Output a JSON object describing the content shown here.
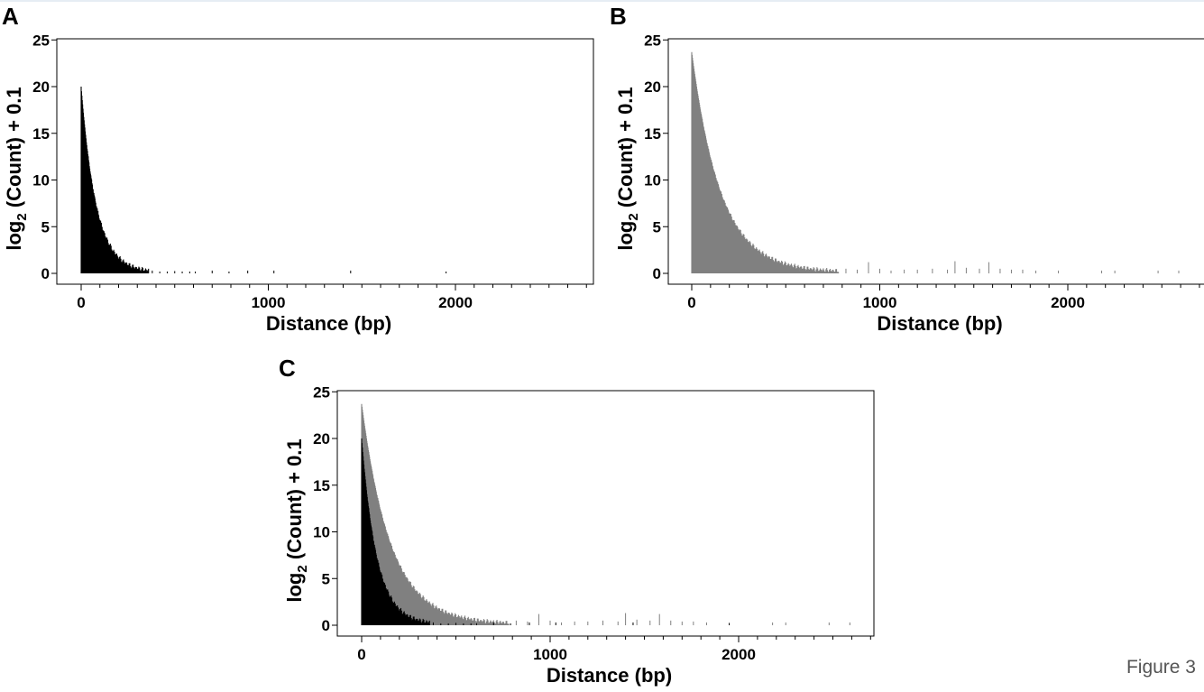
{
  "figure": {
    "caption": "Figure 3",
    "colors": {
      "A": "#000000",
      "B": "#808080",
      "axis": "#000000",
      "background": "#ffffff"
    }
  },
  "chart_data": [
    {
      "panel": "A",
      "type": "bar",
      "xlabel": "Distance (bp)",
      "ylabel_main": "log",
      "ylabel_sub": "2",
      "ylabel_tail": " (Count) + 0.1",
      "xlim": [
        0,
        2700
      ],
      "ylim": [
        0,
        25
      ],
      "xticks": [
        0,
        1000,
        2000
      ],
      "yticks": [
        0,
        5,
        10,
        15,
        20,
        25
      ],
      "grid": false,
      "series": [
        {
          "color": "#000000",
          "decay": {
            "start": 20,
            "rate": 0.0125,
            "x_end": 360
          },
          "spikes": [
            [
              380,
              0.3
            ],
            [
              420,
              0.2
            ],
            [
              460,
              0.2
            ],
            [
              500,
              0.25
            ],
            [
              540,
              0.2
            ],
            [
              580,
              0.2
            ],
            [
              610,
              0.2
            ],
            [
              700,
              0.3
            ],
            [
              790,
              0.2
            ],
            [
              890,
              0.3
            ],
            [
              1030,
              0.3
            ],
            [
              1440,
              0.3
            ],
            [
              1950,
              0.2
            ]
          ]
        }
      ]
    },
    {
      "panel": "B",
      "type": "bar",
      "xlabel": "Distance (bp)",
      "ylabel_main": "log",
      "ylabel_sub": "2",
      "ylabel_tail": " (Count) + 0.1",
      "xlim": [
        0,
        2700
      ],
      "ylim": [
        0,
        25
      ],
      "xticks": [
        0,
        1000,
        2000
      ],
      "yticks": [
        0,
        5,
        10,
        15,
        20,
        25
      ],
      "grid": false,
      "series": [
        {
          "color": "#808080",
          "decay": {
            "start": 23.7,
            "rate": 0.0065,
            "x_end": 780
          },
          "spikes": [
            [
              820,
              0.5
            ],
            [
              880,
              0.4
            ],
            [
              940,
              1.2
            ],
            [
              1000,
              0.5
            ],
            [
              1060,
              0.3
            ],
            [
              1130,
              0.4
            ],
            [
              1200,
              0.4
            ],
            [
              1280,
              0.5
            ],
            [
              1360,
              0.4
            ],
            [
              1400,
              1.3
            ],
            [
              1460,
              0.6
            ],
            [
              1530,
              0.5
            ],
            [
              1580,
              1.2
            ],
            [
              1640,
              0.5
            ],
            [
              1700,
              0.4
            ],
            [
              1760,
              0.4
            ],
            [
              1830,
              0.3
            ],
            [
              1950,
              0.3
            ],
            [
              2180,
              0.3
            ],
            [
              2250,
              0.3
            ],
            [
              2480,
              0.3
            ],
            [
              2590,
              0.3
            ]
          ]
        }
      ]
    },
    {
      "panel": "C",
      "type": "bar",
      "xlabel": "Distance (bp)",
      "ylabel_main": "log",
      "ylabel_sub": "2",
      "ylabel_tail": " (Count) + 0.1",
      "xlim": [
        0,
        2700
      ],
      "ylim": [
        0,
        25
      ],
      "xticks": [
        0,
        1000,
        2000
      ],
      "yticks": [
        0,
        5,
        10,
        15,
        20,
        25
      ],
      "grid": false,
      "series": [
        {
          "color": "#808080",
          "decay": {
            "start": 23.7,
            "rate": 0.0065,
            "x_end": 780
          },
          "spikes": [
            [
              820,
              0.5
            ],
            [
              880,
              0.4
            ],
            [
              940,
              1.2
            ],
            [
              1000,
              0.5
            ],
            [
              1060,
              0.3
            ],
            [
              1130,
              0.4
            ],
            [
              1200,
              0.4
            ],
            [
              1280,
              0.5
            ],
            [
              1360,
              0.4
            ],
            [
              1400,
              1.3
            ],
            [
              1460,
              0.6
            ],
            [
              1530,
              0.5
            ],
            [
              1580,
              1.2
            ],
            [
              1640,
              0.5
            ],
            [
              1700,
              0.4
            ],
            [
              1760,
              0.4
            ],
            [
              1830,
              0.3
            ],
            [
              1950,
              0.3
            ],
            [
              2180,
              0.3
            ],
            [
              2250,
              0.3
            ],
            [
              2480,
              0.3
            ],
            [
              2590,
              0.3
            ]
          ]
        },
        {
          "color": "#000000",
          "decay": {
            "start": 20,
            "rate": 0.0125,
            "x_end": 360
          },
          "spikes": [
            [
              380,
              0.3
            ],
            [
              420,
              0.2
            ],
            [
              460,
              0.2
            ],
            [
              500,
              0.25
            ],
            [
              540,
              0.2
            ],
            [
              580,
              0.2
            ],
            [
              610,
              0.2
            ],
            [
              700,
              0.3
            ],
            [
              790,
              0.2
            ],
            [
              890,
              0.3
            ],
            [
              1030,
              0.3
            ],
            [
              1440,
              0.3
            ],
            [
              1950,
              0.2
            ]
          ]
        }
      ]
    }
  ]
}
